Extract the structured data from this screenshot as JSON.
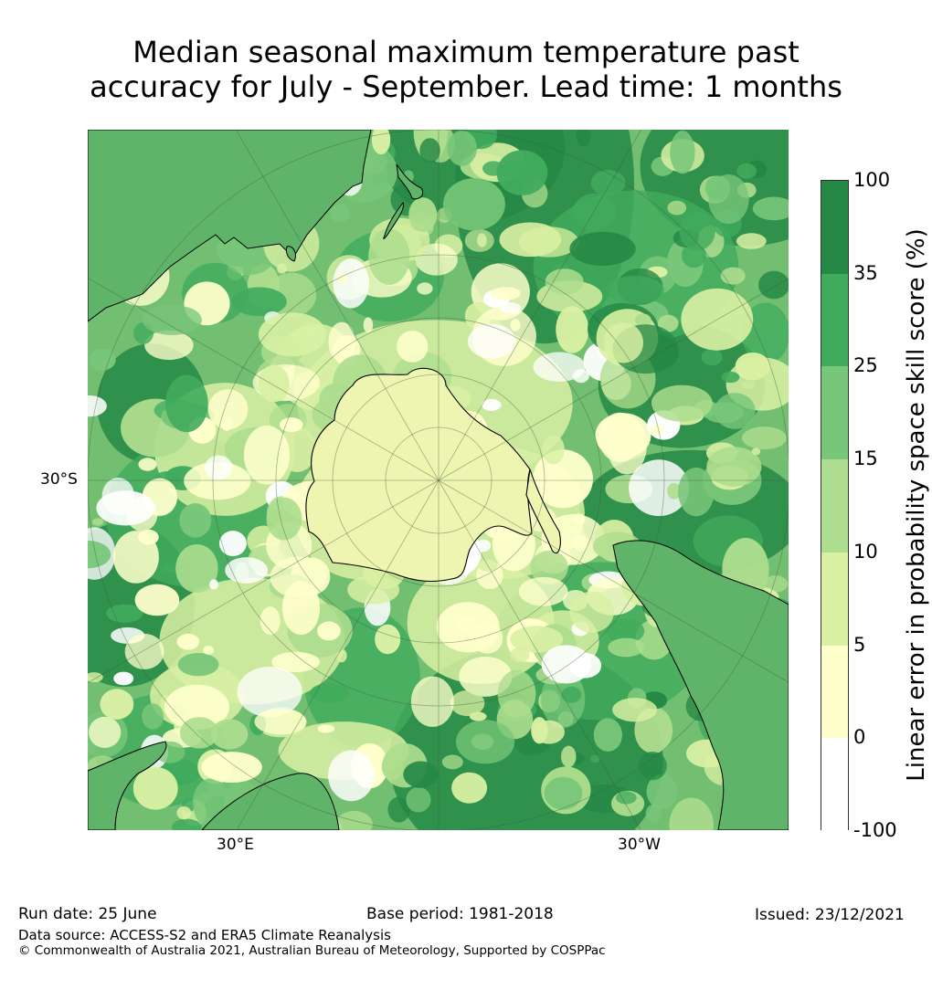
{
  "title_line1": "Median seasonal maximum temperature past",
  "title_line2": "accuracy for July - September. Lead time: 1 months",
  "map": {
    "label_lat": "30°S",
    "label_lon_east": "30°E",
    "label_lon_west": "30°W",
    "projection": "south-polar-stereographic",
    "colors": {
      "ocean_base": "#72bf72",
      "darkest": "#258845",
      "dark": "#41ab5d",
      "medium": "#78c679",
      "light": "#addd8e",
      "pale": "#d9f0a3",
      "palest": "#ffffcc",
      "white": "#ffffff",
      "coast": "#000000"
    }
  },
  "colorbar": {
    "label": "Linear error in probability space skill score (%)",
    "ticks": [
      "100",
      "35",
      "25",
      "15",
      "10",
      "5",
      "0",
      "-100"
    ],
    "colors": [
      "#258845",
      "#41ab5d",
      "#78c679",
      "#addd8e",
      "#d9f0a3",
      "#ffffcc",
      "#ffffff"
    ]
  },
  "footer": {
    "run_date": "Run date: 25 June",
    "base_period": "Base period: 1981-2018",
    "issued": "Issued: 23/12/2021",
    "data_source": "Data source: ACCESS-S2 and ERA5 Climate Reanalysis",
    "copyright": "© Commonwealth of Australia 2021, Australian Bureau of Meteorology, Supported by COSPPac"
  }
}
